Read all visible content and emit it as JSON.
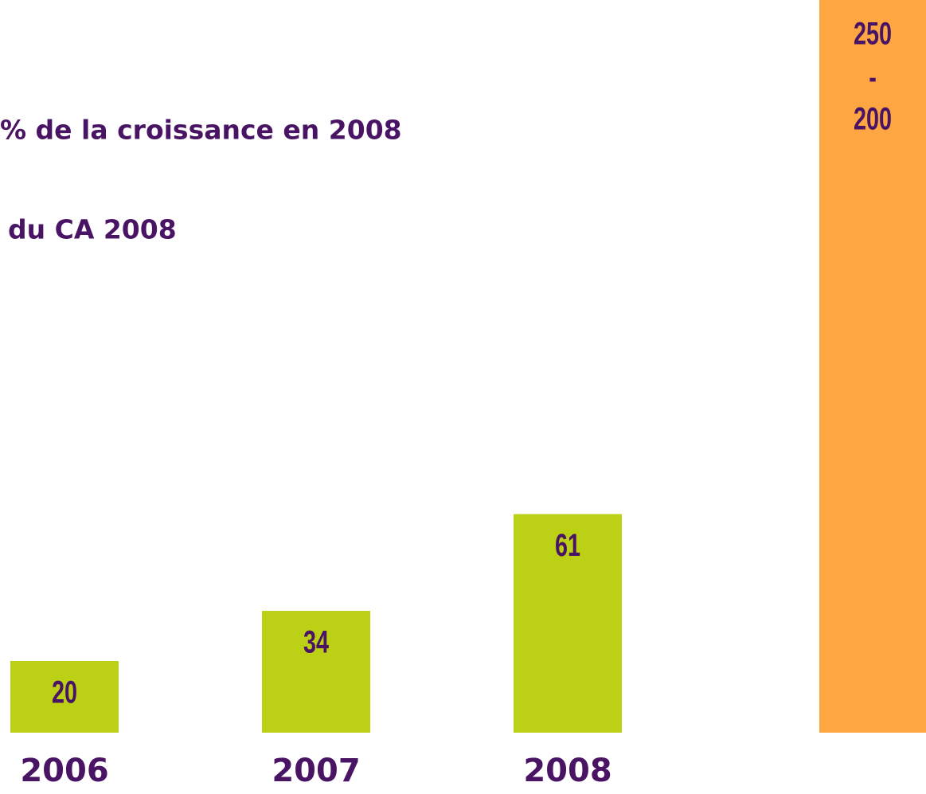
{
  "chart_data": {
    "type": "bar",
    "annotations": [
      "% de la croissance en 2008",
      "du CA 2008"
    ],
    "categories": [
      "2006",
      "2007",
      "2008"
    ],
    "values": [
      20,
      34,
      61
    ],
    "color": "#bcd015",
    "range_bar": {
      "high": 250,
      "separator": "-",
      "low": 200,
      "color": "#fda642"
    }
  }
}
